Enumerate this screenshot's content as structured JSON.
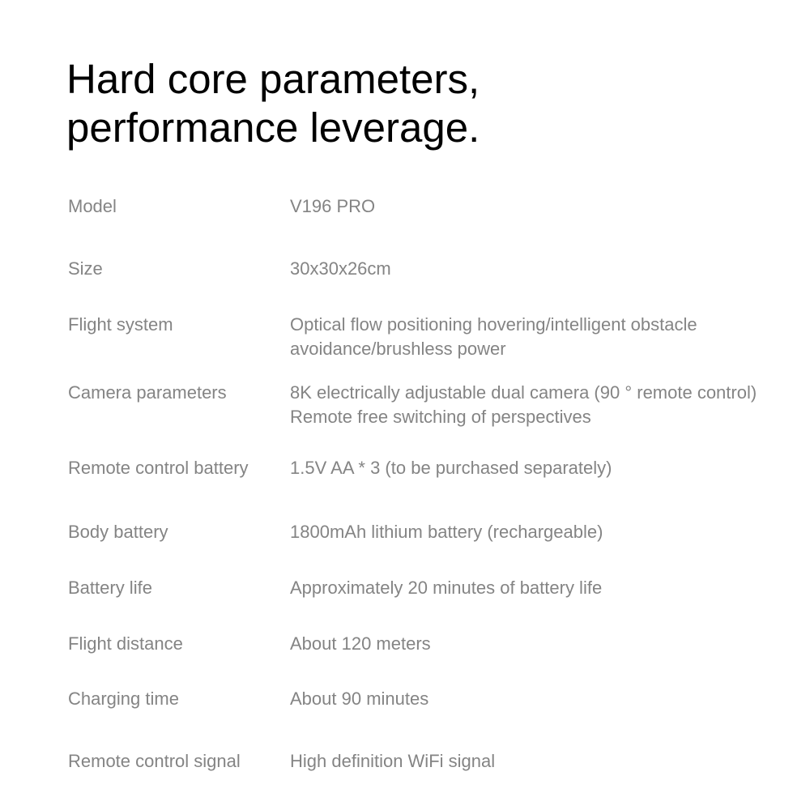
{
  "page": {
    "title_line1": "Hard core parameters,",
    "title_line2": "performance leverage."
  },
  "specs": {
    "rows": [
      {
        "label": "Model",
        "value": "V196 PRO"
      },
      {
        "label": "Size",
        "value": "30x30x26cm"
      },
      {
        "label": "Flight system",
        "value": "Optical flow positioning hovering/intelligent obstacle avoidance/brushless power"
      },
      {
        "label": "Camera parameters",
        "value": "8K electrically adjustable dual camera (90 ° remote control) Remote free switching of perspectives"
      },
      {
        "label": "Remote control battery",
        "value": "1.5V AA * 3 (to be purchased separately)"
      },
      {
        "label": "Body battery",
        "value": "1800mAh lithium battery (rechargeable)"
      },
      {
        "label": "Battery life",
        "value": "Approximately 20 minutes of battery life"
      },
      {
        "label": "Flight distance",
        "value": "About 120 meters"
      },
      {
        "label": "Charging time",
        "value": "About 90 minutes"
      },
      {
        "label": "Remote control signal",
        "value": "High definition WiFi signal"
      }
    ]
  },
  "colors": {
    "background": "#ffffff",
    "heading_text": "#000000",
    "body_text": "#848484"
  }
}
